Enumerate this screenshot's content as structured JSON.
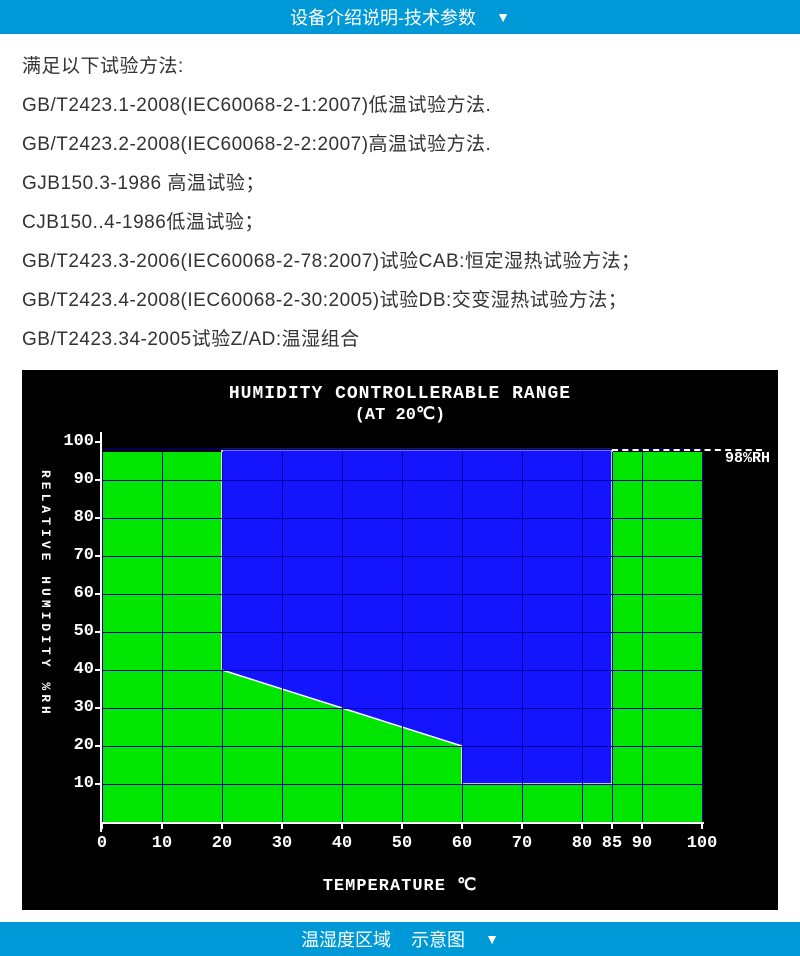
{
  "header1": {
    "title": "设备介绍说明-技术参数"
  },
  "header2": {
    "title_a": "温湿度区域",
    "title_b": "示意图"
  },
  "text_lines": [
    "满足以下试验方法:",
    "GB/T2423.1-2008(IEC60068-2-1:2007)低温试验方法.",
    "GB/T2423.2-2008(IEC60068-2-2:2007)高温试验方法.",
    "GJB150.3-1986 高温试验；",
    "CJB150..4-1986低温试验；",
    "GB/T2423.3-2006(IEC60068-2-78:2007)试验CAB:恒定湿热试验方法；",
    "GB/T2423.4-2008(IEC60068-2-30:2005)试验DB:交变湿热试验方法；",
    "GB/T2423.34-2005试验Z/AD:温湿组合"
  ],
  "chart": {
    "title": "HUMIDITY CONTROLLERABLE RANGE",
    "subtitle": "(AT 20℃)",
    "y_label": "RELATIVE HUMIDITY %RH",
    "x_label": "TEMPERATURE  ℃",
    "rh_annotation": "98%RH",
    "colors": {
      "bg": "#000000",
      "green": "#00e600",
      "blue": "#1414ff",
      "grid": "#0000b0",
      "text": "#ffffff"
    },
    "x_range": [
      0,
      100
    ],
    "y_range": [
      0,
      100
    ],
    "x_ticks": [
      0,
      10,
      20,
      30,
      40,
      50,
      60,
      70,
      80,
      85,
      90,
      100
    ],
    "y_ticks": [
      10,
      20,
      30,
      40,
      50,
      60,
      70,
      80,
      90,
      100
    ],
    "grid_x": [
      0,
      10,
      20,
      30,
      40,
      50,
      60,
      70,
      80,
      85,
      90,
      100
    ],
    "grid_y": [
      10,
      20,
      30,
      40,
      50,
      60,
      70,
      80,
      90,
      98
    ],
    "blue_polygon": [
      [
        20,
        98
      ],
      [
        85,
        98
      ],
      [
        85,
        10
      ],
      [
        60,
        10
      ],
      [
        60,
        20
      ],
      [
        20,
        40
      ],
      [
        20,
        98
      ]
    ],
    "dash_y": 98,
    "dash_x_from": 85,
    "dash_x_to": 100
  }
}
